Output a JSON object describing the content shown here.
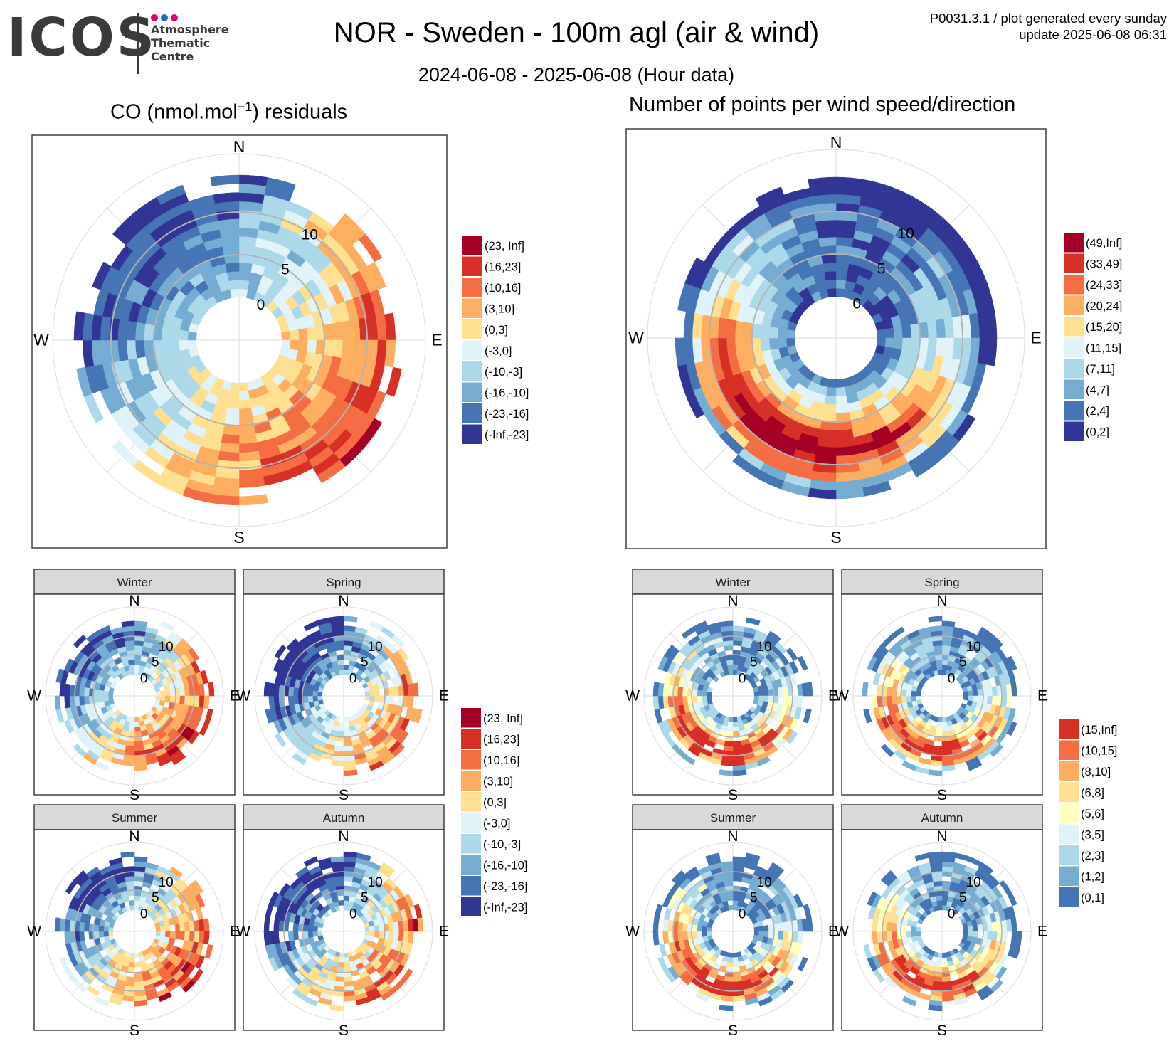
{
  "header": {
    "logo_text": "ICOS",
    "logo_subtitle": [
      "Atmosphere",
      "Thematic",
      "Centre"
    ],
    "logo_dot_colors": [
      "#e6007e",
      "#1d71b8",
      "#e6007e"
    ],
    "title": "NOR - Sweden - 100m agl (air & wind)",
    "subtitle": "2024-06-08 - 2025-06-08 (Hour data)",
    "plot_id": "P0031.3.1 / plot generated every sunday",
    "update": "update  2025-06-08 06:31"
  },
  "panels": {
    "left_title_prefix": "CO (nmol.mol",
    "left_title_sup": "−1",
    "left_title_suffix": ") residuals",
    "right_title": "Number of points per wind speed/direction"
  },
  "chart_data": [
    {
      "type": "polar-heatmap",
      "id": "co-residuals-annual",
      "title": "CO (nmol.mol−1) residuals",
      "compass": [
        "N",
        "E",
        "S",
        "W"
      ],
      "radial_ticks": [
        "0",
        "5",
        "10"
      ],
      "wind_speed_range": [
        0,
        15
      ],
      "legend": {
        "labels": [
          "(23, Inf]",
          "(16,23]",
          "(10,16]",
          "(3,10]",
          "(0,3]",
          "(-3,0]",
          "(-10,-3]",
          "(-16,-10]",
          "(-23,-16]",
          "(-Inf,-23]"
        ],
        "colors": [
          "#a50026",
          "#d73027",
          "#f46d43",
          "#fdae61",
          "#fee090",
          "#e0f3f8",
          "#abd9e9",
          "#74add1",
          "#4575b4",
          "#313695"
        ]
      },
      "description": "Mostly positive residuals (3 to 16) for winds from east to south; negative residuals (-10 to -3) for winds from west and north-west."
    },
    {
      "type": "polar-heatmap",
      "id": "wind-counts-annual",
      "title": "Number of points per wind speed/direction",
      "compass": [
        "N",
        "E",
        "S",
        "W"
      ],
      "radial_ticks": [
        "0",
        "5",
        "10"
      ],
      "wind_speed_range": [
        0,
        15
      ],
      "legend": {
        "labels": [
          "(49,Inf]",
          "(33,49]",
          "(24,33]",
          "(20,24]",
          "(15,20]",
          "(11,15]",
          "(7,11]",
          "(4,7]",
          "(2,4]",
          "(0,2]"
        ],
        "colors": [
          "#a50026",
          "#d73027",
          "#f46d43",
          "#fdae61",
          "#fee090",
          "#e0f3f8",
          "#abd9e9",
          "#74add1",
          "#4575b4",
          "#313695"
        ]
      },
      "description": "Highest counts (>49) for south to south-west winds at 5-12 m/s."
    },
    {
      "type": "polar-heatmap-facets",
      "id": "co-residuals-seasonal",
      "facets": [
        "Winter",
        "Spring",
        "Summer",
        "Autumn"
      ],
      "compass": [
        "N",
        "E",
        "S",
        "W"
      ],
      "radial_ticks": [
        "0",
        "5",
        "10"
      ],
      "legend": {
        "labels": [
          "(23, Inf]",
          "(16,23]",
          "(10,16]",
          "(3,10]",
          "(0,3]",
          "(-3,0]",
          "(-10,-3]",
          "(-16,-10]",
          "(-23,-16]",
          "(-Inf,-23]"
        ],
        "colors": [
          "#a50026",
          "#d73027",
          "#f46d43",
          "#fdae61",
          "#fee090",
          "#e0f3f8",
          "#abd9e9",
          "#74add1",
          "#4575b4",
          "#313695"
        ]
      }
    },
    {
      "type": "polar-heatmap-facets",
      "id": "wind-counts-seasonal",
      "facets": [
        "Winter",
        "Spring",
        "Summer",
        "Autumn"
      ],
      "compass": [
        "N",
        "E",
        "S",
        "W"
      ],
      "radial_ticks": [
        "0",
        "5",
        "10"
      ],
      "legend": {
        "labels": [
          "(15,Inf]",
          "(10,15]",
          "(8,10]",
          "(6,8]",
          "(5,6]",
          "(3,5]",
          "(2,3]",
          "(1,2]",
          "(0,1]"
        ],
        "colors": [
          "#d73027",
          "#f46d43",
          "#fdae61",
          "#fee090",
          "#ffffbf",
          "#e0f3f8",
          "#abd9e9",
          "#74add1",
          "#4575b4"
        ]
      }
    }
  ]
}
